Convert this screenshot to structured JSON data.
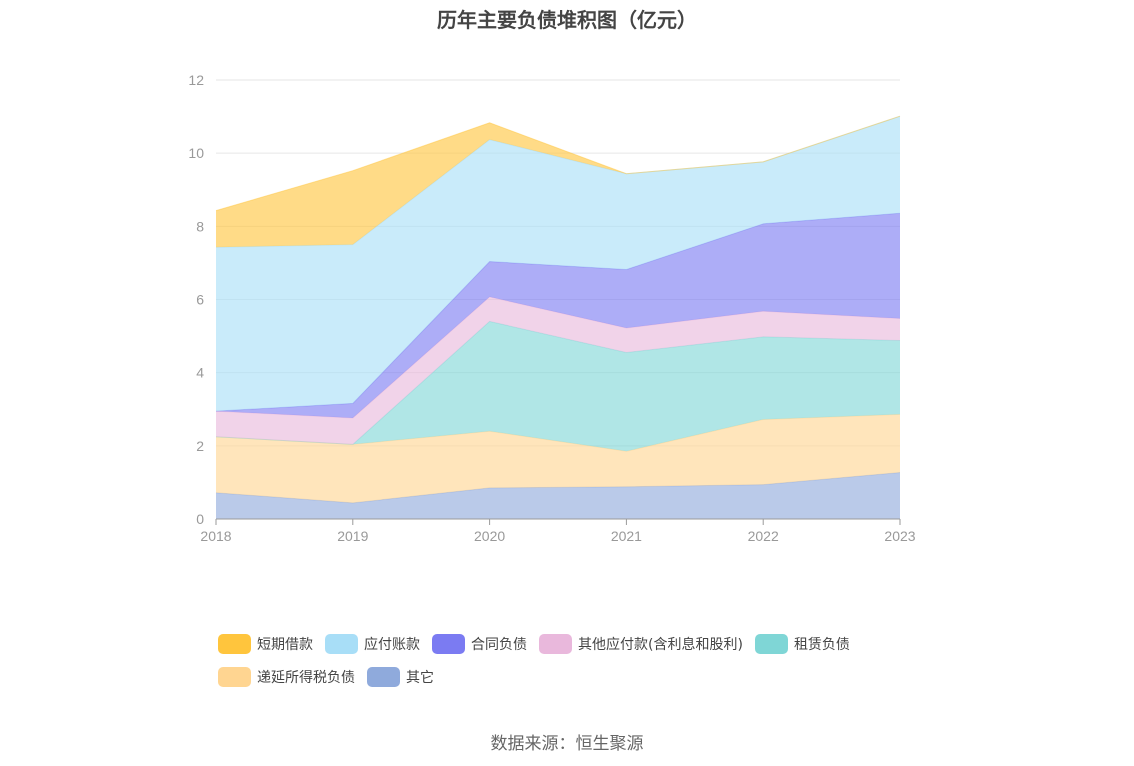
{
  "title": "历年主要负债堆积图（亿元）",
  "source": "数据来源：恒生聚源",
  "chart_data": {
    "type": "area",
    "stacked": true,
    "x": [
      "2018",
      "2019",
      "2020",
      "2021",
      "2022",
      "2023"
    ],
    "ylim": [
      0,
      12
    ],
    "yticks": [
      "0",
      "2",
      "4",
      "6",
      "8",
      "10",
      "12"
    ],
    "grid": true,
    "legend_position": "bottom",
    "series": [
      {
        "name": "其它",
        "color": "#8FAADC",
        "values": [
          0.72,
          0.44,
          0.85,
          0.88,
          0.94,
          1.27
        ]
      },
      {
        "name": "递延所得税负债",
        "color": "#FFD591",
        "values": [
          1.53,
          1.6,
          1.55,
          0.97,
          1.78,
          1.59
        ]
      },
      {
        "name": "租赁负债",
        "color": "#7FD6D6",
        "values": [
          0.0,
          0.0,
          3.0,
          2.7,
          2.26,
          2.02
        ]
      },
      {
        "name": "其他应付款(含利息和股利)",
        "color": "#E9B8DC",
        "values": [
          0.7,
          0.72,
          0.67,
          0.67,
          0.7,
          0.6
        ]
      },
      {
        "name": "合同负债",
        "color": "#7B7BF2",
        "values": [
          0.0,
          0.4,
          0.97,
          1.6,
          2.39,
          2.88
        ]
      },
      {
        "name": "应付账款",
        "color": "#A8DEF7",
        "values": [
          4.48,
          4.34,
          3.33,
          2.62,
          1.69,
          2.65
        ]
      },
      {
        "name": "短期借款",
        "color": "#FFC53D",
        "values": [
          1.0,
          2.02,
          0.46,
          0.0,
          0.0,
          0.0
        ]
      }
    ]
  },
  "legend": {
    "row1": [
      {
        "label": "短期借款",
        "color": "#FFC53D"
      },
      {
        "label": "应付账款",
        "color": "#A8DEF7"
      },
      {
        "label": "合同负债",
        "color": "#7B7BF2"
      },
      {
        "label": "其他应付款(含利息和股利)",
        "color": "#E9B8DC"
      },
      {
        "label": "租赁负债",
        "color": "#7FD6D6"
      }
    ],
    "row2": [
      {
        "label": "递延所得税负债",
        "color": "#FFD591"
      },
      {
        "label": "其它",
        "color": "#8FAADC"
      }
    ]
  }
}
